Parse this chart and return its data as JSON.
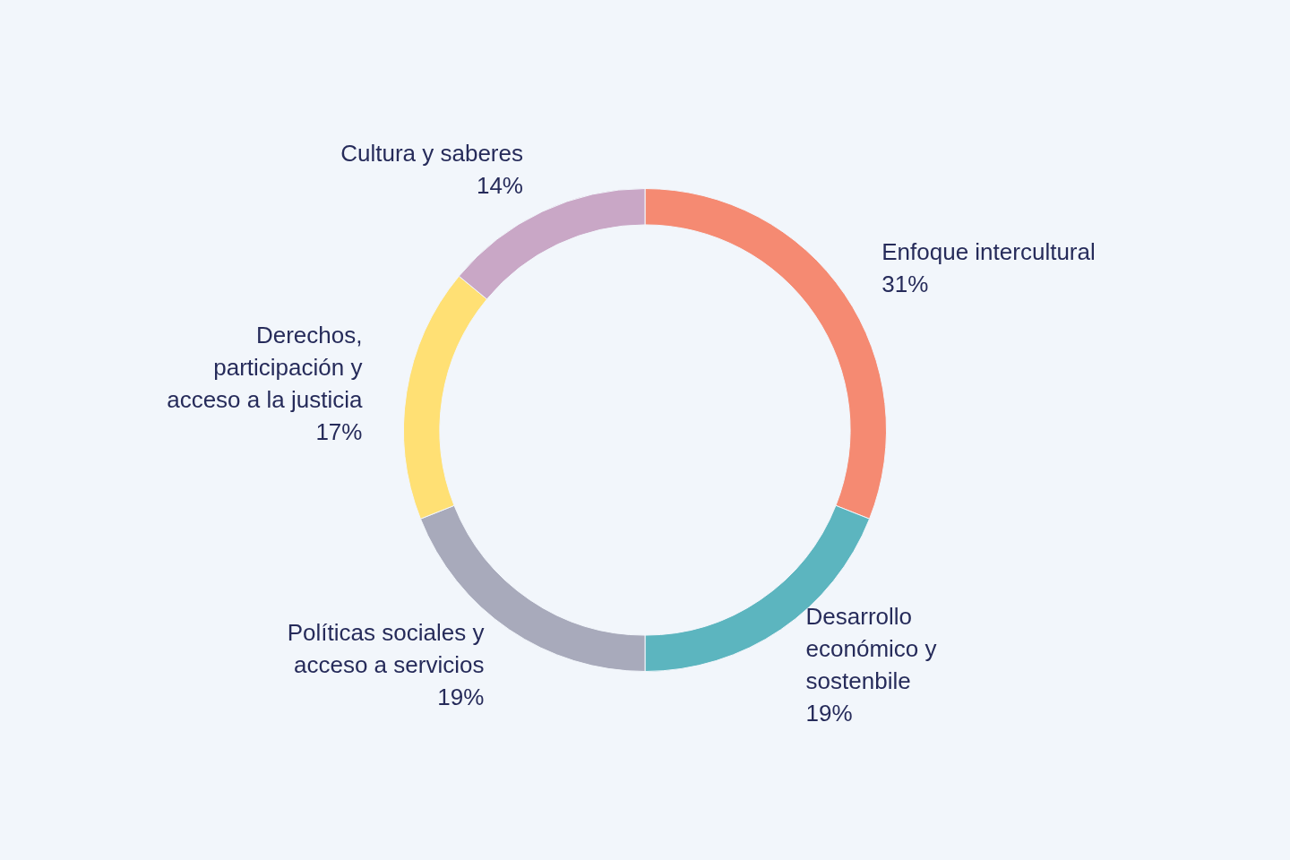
{
  "chart_data": {
    "type": "donut",
    "categories": [
      "Enfoque intercultural",
      "Desarrollo económico y sostenbile",
      "Políticas sociales y acceso a servicios",
      "Derechos, participación y acceso a la justicia",
      "Cultura y saberes"
    ],
    "values": [
      31,
      19,
      19,
      17,
      14
    ],
    "value_labels": [
      "31%",
      "19%",
      "19%",
      "17%",
      "14%"
    ],
    "colors": [
      "#f58a72",
      "#5cb5bf",
      "#a8aabb",
      "#ffe074",
      "#c9a7c6"
    ],
    "legend": false
  }
}
